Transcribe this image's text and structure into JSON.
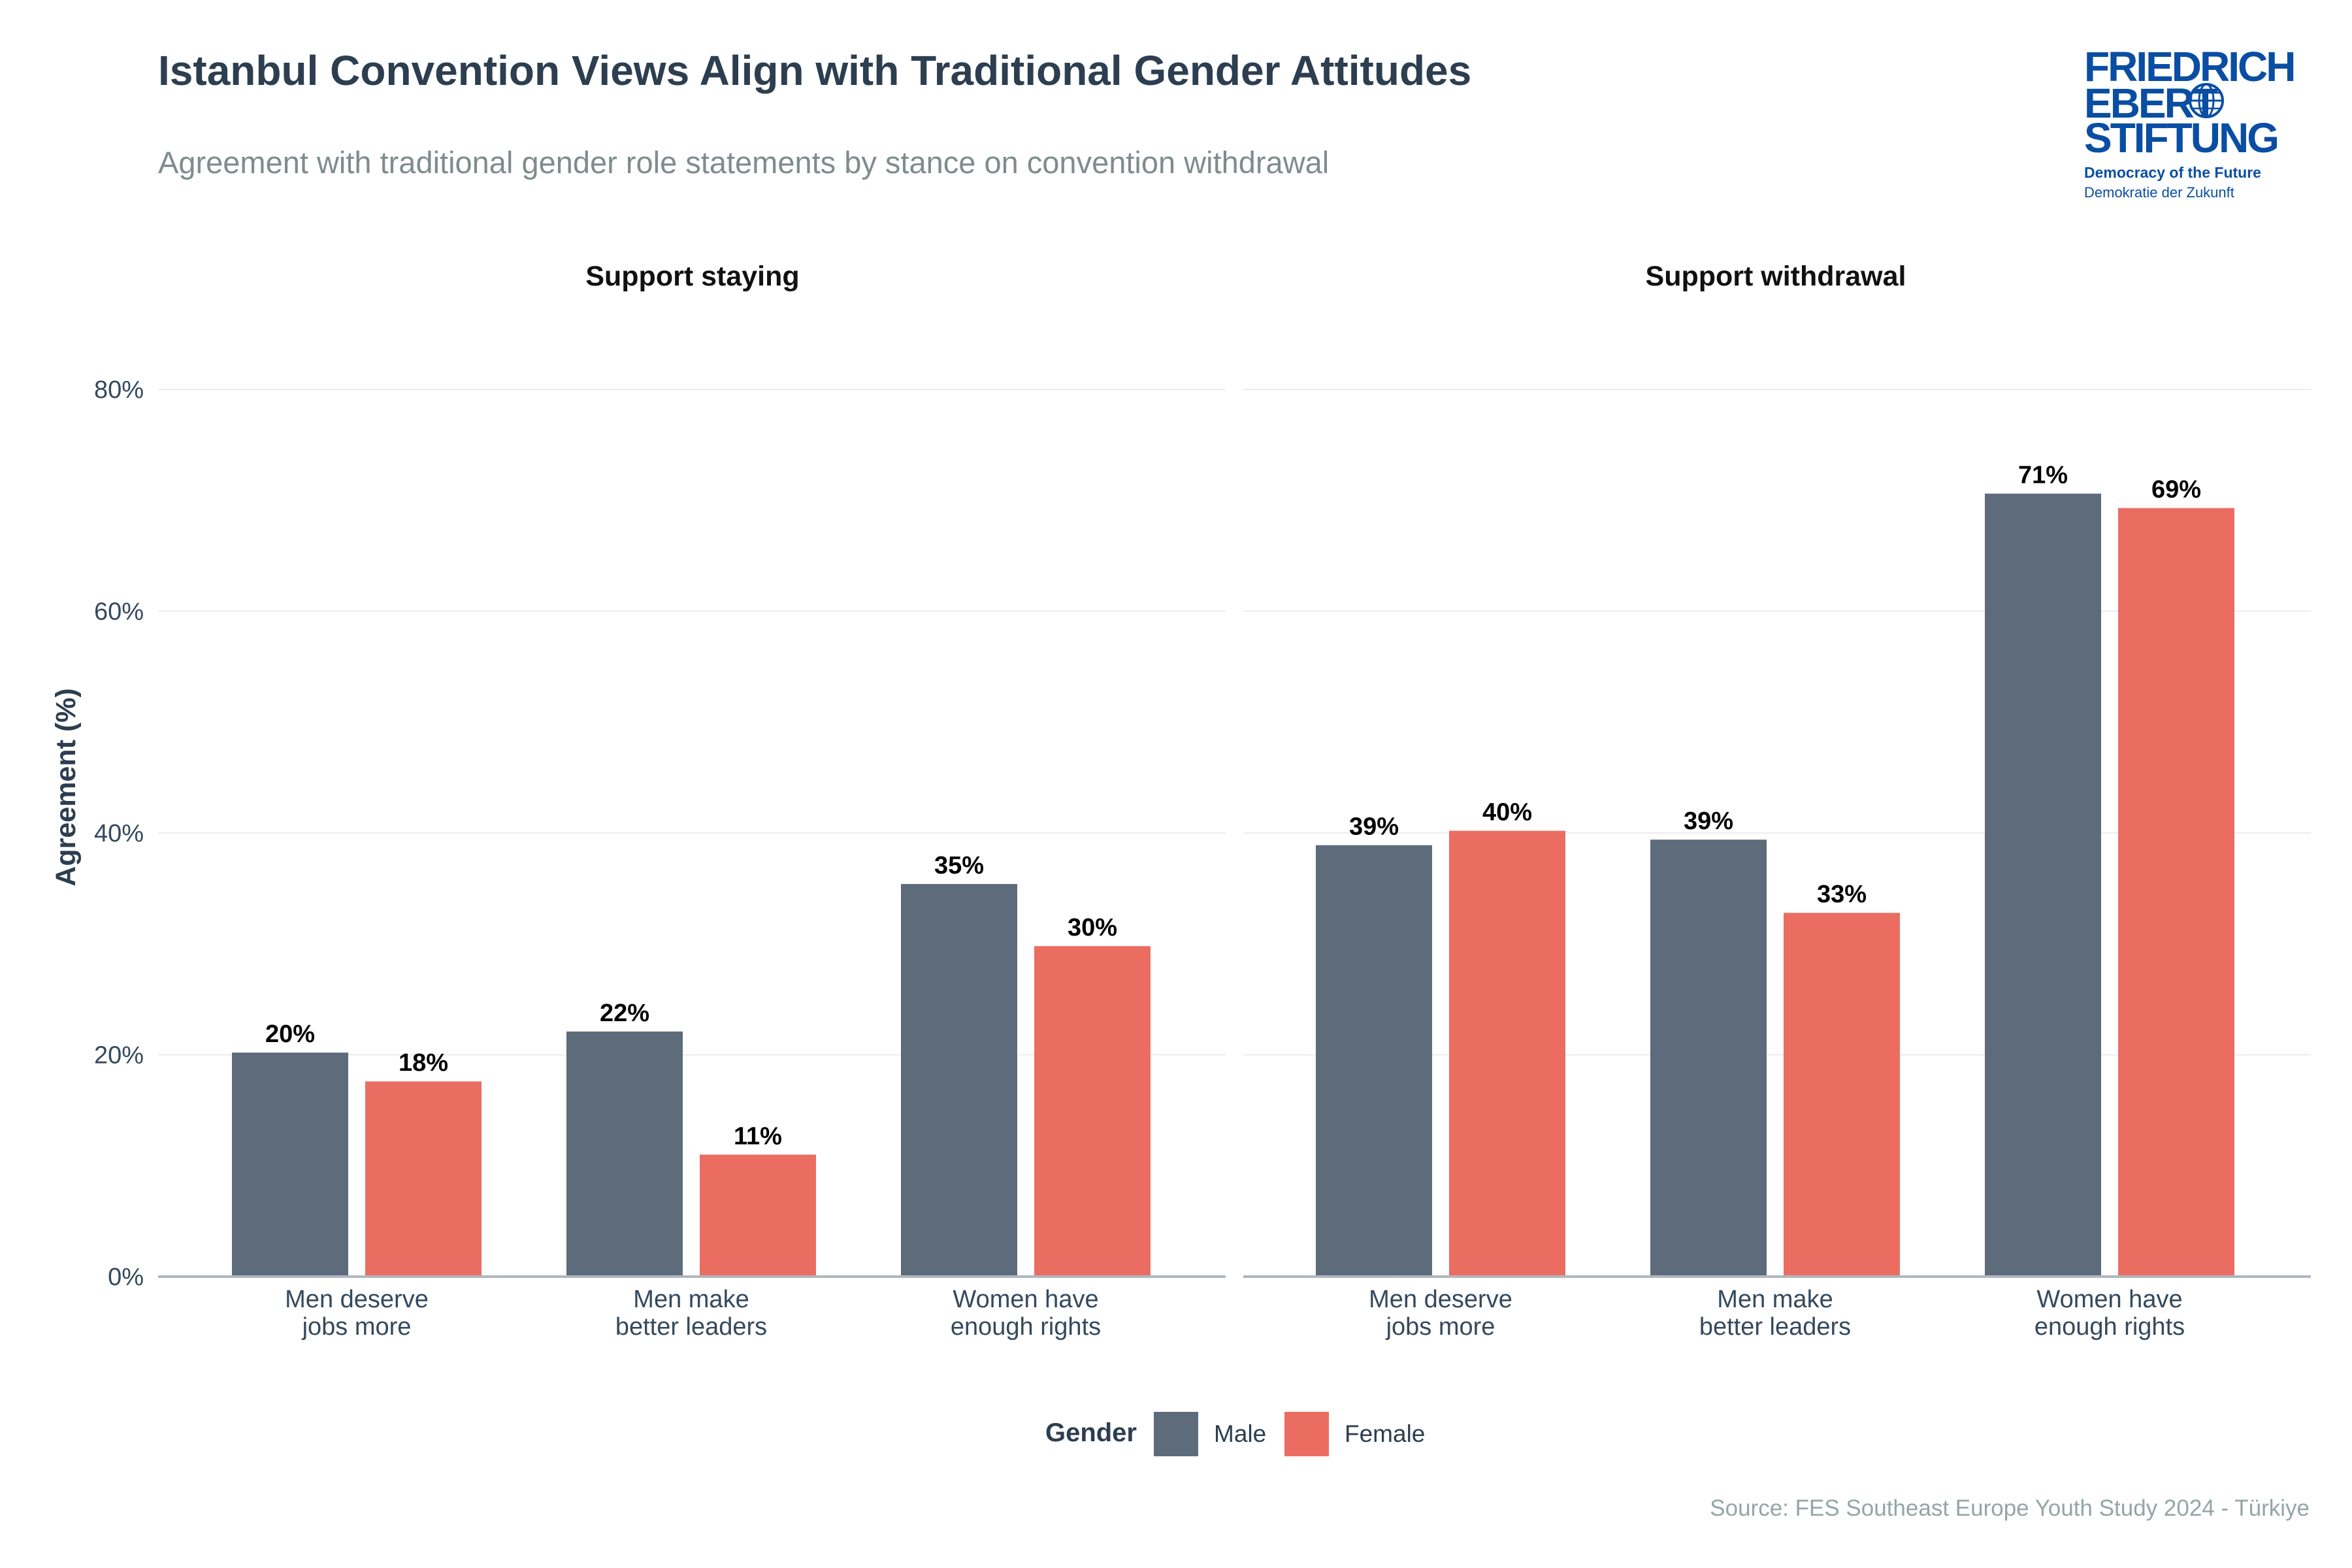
{
  "chart_data": {
    "type": "bar",
    "title": "Istanbul Convention Views Align with Traditional Gender Attitudes",
    "subtitle": "Agreement with traditional gender role statements by stance on convention withdrawal",
    "ylabel": "Agreement (%)",
    "xlabel": "",
    "ylim": [
      0,
      80
    ],
    "yticks": [
      0,
      20,
      40,
      60,
      80
    ],
    "ytick_labels": [
      "0%",
      "20%",
      "40%",
      "60%",
      "80%"
    ],
    "categories": [
      "Men deserve\njobs more",
      "Men make\nbetter leaders",
      "Women have\nenough rights"
    ],
    "legend": {
      "title": "Gender",
      "position": "bottom"
    },
    "colors": {
      "Male": "#5d6b7b",
      "Female": "#eb6d62"
    },
    "facets": [
      {
        "name": "Support staying",
        "series": [
          {
            "name": "Male",
            "values": [
              20.2,
              22.1,
              35.4
            ],
            "labels": [
              "20%",
              "22%",
              "35%"
            ]
          },
          {
            "name": "Female",
            "values": [
              17.6,
              11.0,
              29.8
            ],
            "labels": [
              "18%",
              "11%",
              "30%"
            ]
          }
        ]
      },
      {
        "name": "Support withdrawal",
        "series": [
          {
            "name": "Male",
            "values": [
              38.9,
              39.4,
              70.6
            ],
            "labels": [
              "39%",
              "39%",
              "71%"
            ]
          },
          {
            "name": "Female",
            "values": [
              40.2,
              32.8,
              69.3
            ],
            "labels": [
              "40%",
              "33%",
              "69%"
            ]
          }
        ]
      }
    ],
    "caption": "Source: FES Southeast Europe Youth Study 2024 - Türkiye"
  },
  "logo": {
    "line1": "FRIEDRICH",
    "line2": "EBERT",
    "line3": "STIFTUNG",
    "tagline1": "Democracy of the Future",
    "tagline2": "Demokratie der Zukunft",
    "color": "#0a4ea3"
  },
  "colors": {
    "grid": "#ececec",
    "axis": "#b0b7c0"
  }
}
